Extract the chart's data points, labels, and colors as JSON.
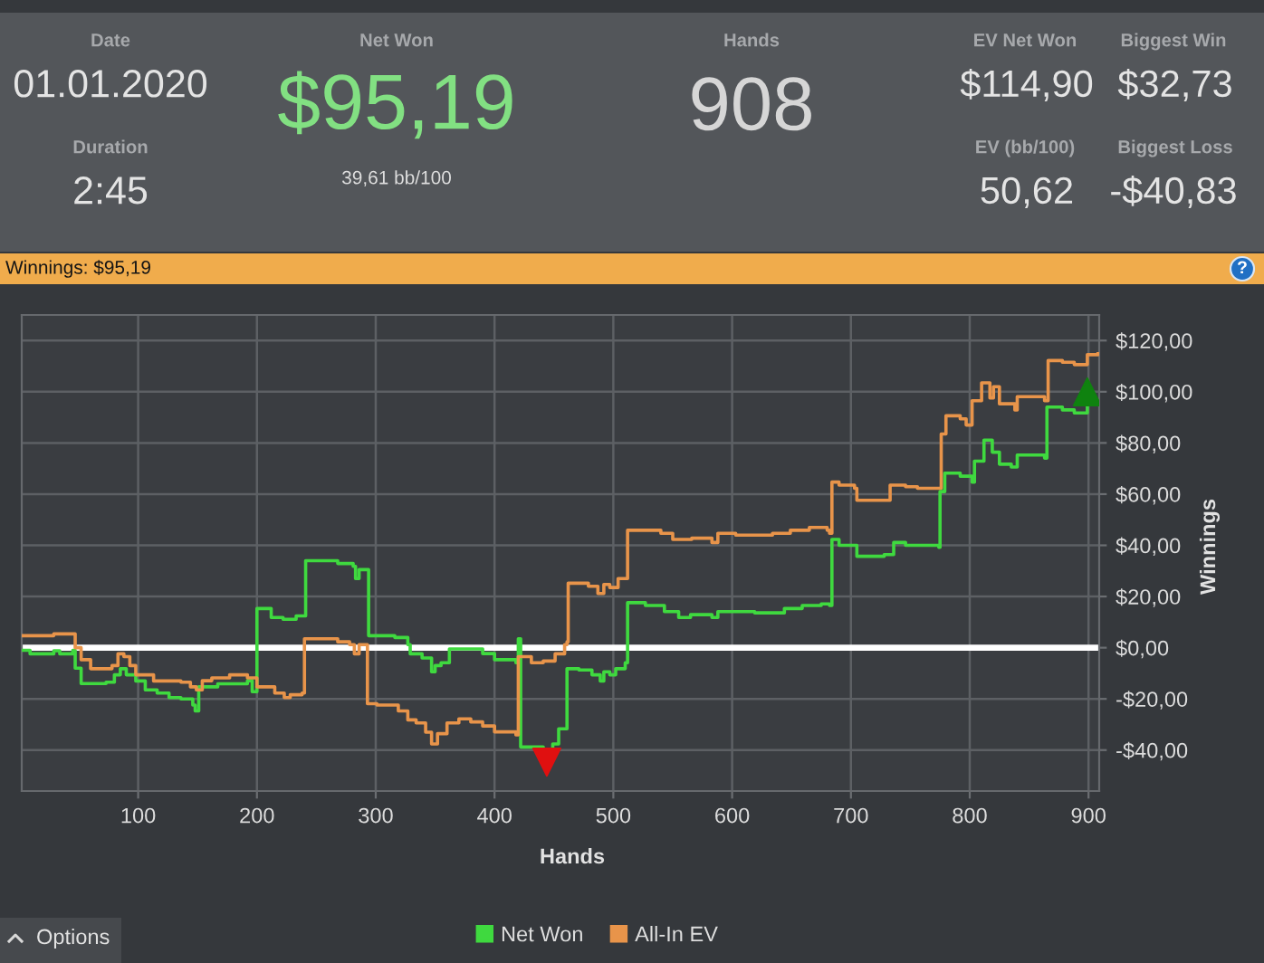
{
  "chart_data": [
    {
      "type": "other",
      "annotations": [
        "Date",
        "01.01.2020",
        "Duration",
        "2:45",
        "Net Won",
        "$95,19",
        "39,61 bb/100",
        "Hands",
        "908",
        "EV Net Won",
        "$114,90",
        "EV (bb/100)",
        "50,62",
        "Biggest Win",
        "$32,73",
        "Biggest Loss",
        "-$40,83"
      ]
    },
    {
      "type": "step",
      "title": "Winnings: $95,19",
      "xlabel": "Hands",
      "ylabel": "Winnings",
      "xlim": [
        2,
        909
      ],
      "ylim": [
        -56,
        130
      ],
      "xticks": [
        100,
        200,
        300,
        400,
        500,
        600,
        700,
        800,
        900
      ],
      "yticks": [
        {
          "value": -40,
          "label": "-$40,00"
        },
        {
          "value": -20,
          "label": "-$20,00"
        },
        {
          "value": 0,
          "label": "$0,00"
        },
        {
          "value": 20,
          "label": "$20,00"
        },
        {
          "value": 40,
          "label": "$40,00"
        },
        {
          "value": 60,
          "label": "$60,00"
        },
        {
          "value": 80,
          "label": "$80,00"
        },
        {
          "value": 100,
          "label": "$100,00"
        },
        {
          "value": 120,
          "label": "$120,00"
        }
      ],
      "grid": true,
      "legend": "bottom",
      "annotations": [
        "?",
        "Options"
      ],
      "ref_lines": [
        {
          "axis": "y",
          "value": 0,
          "color": "#ffffff"
        }
      ],
      "series": [
        {
          "name": "Net Won",
          "color": "#3fd93f",
          "x": [
            2,
            9,
            29,
            34,
            45,
            47,
            52,
            60,
            73,
            80,
            85,
            90,
            98,
            106,
            116,
            126,
            136,
            146,
            148,
            151,
            167,
            192,
            196,
            200,
            212,
            222,
            233,
            241,
            268,
            281,
            283,
            286,
            294,
            316,
            327,
            329,
            339,
            347,
            350,
            355,
            362,
            390,
            400,
            418,
            420,
            422,
            441,
            449,
            454,
            461,
            471,
            482,
            489,
            492,
            497,
            502,
            510,
            512,
            527,
            543,
            555,
            565,
            583,
            588,
            619,
            644,
            659,
            675,
            682,
            684,
            690,
            705,
            728,
            736,
            746,
            774,
            775,
            779,
            792,
            802,
            804,
            812,
            819,
            825,
            835,
            840,
            863,
            865,
            878,
            888,
            899,
            908
          ],
          "values": [
            -1,
            -2.4,
            -1.2,
            -2.4,
            -1,
            -8,
            -14,
            -14,
            -13.5,
            -10.6,
            -8.2,
            -10.6,
            -13,
            -16.5,
            -17.7,
            -19.5,
            -20,
            -22.4,
            -24.7,
            -15.3,
            -14.1,
            -12.9,
            -17.2,
            15.3,
            11.8,
            11.1,
            12.4,
            34,
            32.9,
            31.8,
            27,
            30.5,
            4.7,
            4,
            1.2,
            -2.4,
            -4,
            -9.4,
            -7,
            -5.9,
            -0.5,
            -2.3,
            -4.7,
            -5.9,
            3.5,
            -38.8,
            -40,
            -37.6,
            -31.7,
            -8.2,
            -8.7,
            -10.6,
            -13,
            -9.4,
            -10.6,
            -8.2,
            -5.9,
            17.6,
            16.5,
            14.1,
            11.8,
            12.9,
            11.8,
            14.1,
            13.6,
            15.3,
            16.5,
            17.1,
            16.5,
            42.3,
            40,
            35.7,
            36.4,
            41.1,
            40,
            39.2,
            61,
            68.2,
            67,
            64.7,
            72.9,
            81.1,
            76.4,
            71.7,
            70.6,
            75.3,
            74.1,
            94,
            92.9,
            91.7,
            95.2,
            95.2
          ]
        },
        {
          "name": "All-In EV",
          "color": "#e8944a",
          "x": [
            2,
            29,
            47,
            52,
            60,
            78,
            83,
            88,
            93,
            98,
            113,
            136,
            144,
            149,
            154,
            162,
            177,
            192,
            200,
            215,
            223,
            228,
            238,
            240,
            268,
            278,
            282,
            286,
            293,
            301,
            319,
            327,
            334,
            342,
            347,
            352,
            360,
            370,
            380,
            390,
            400,
            418,
            420,
            431,
            441,
            451,
            459,
            461,
            462,
            479,
            487,
            492,
            497,
            504,
            512,
            540,
            550,
            566,
            583,
            588,
            603,
            634,
            649,
            665,
            680,
            682,
            684,
            690,
            703,
            705,
            723,
            733,
            746,
            756,
            776,
            780,
            792,
            797,
            802,
            810,
            817,
            820,
            825,
            838,
            840,
            863,
            866,
            878,
            888,
            899,
            908
          ],
          "values": [
            4.7,
            5.4,
            0,
            -4.7,
            -8.2,
            -7,
            -2.4,
            -3.5,
            -7,
            -10.6,
            -13,
            -13.5,
            -15.3,
            -16.5,
            -12.9,
            -11.8,
            -10.6,
            -11.8,
            -15.3,
            -17.7,
            -19.5,
            -18.4,
            -17.7,
            3.5,
            2.3,
            1.2,
            -2.4,
            1.2,
            -21.9,
            -22.4,
            -24.7,
            -28.2,
            -29.4,
            -33,
            -37.6,
            -33.6,
            -29.4,
            -27.8,
            -29,
            -30.6,
            -32.9,
            -34.1,
            -3.5,
            -5.9,
            -5.2,
            -2.4,
            1.2,
            2.3,
            25.2,
            24,
            21.2,
            24.7,
            23.5,
            27,
            45.9,
            44.7,
            42.3,
            42.8,
            41.1,
            44.7,
            44,
            44.7,
            45.9,
            47,
            45.9,
            44.7,
            64.7,
            63.5,
            62.3,
            57.6,
            57.6,
            63.5,
            62.9,
            62.3,
            83.5,
            90.6,
            89.4,
            87,
            96.5,
            103.5,
            97.6,
            102,
            95.3,
            92.9,
            98.1,
            96.5,
            112.2,
            111.5,
            110.6,
            114.5,
            114.9
          ]
        },
        {
          "type": "scatter",
          "marker": "triangle_down",
          "color": "#e01010",
          "x": [
            444
          ],
          "values": [
            -44.7
          ]
        },
        {
          "type": "scatter",
          "marker": "triangle",
          "color": "#0f820f",
          "x": [
            899
          ],
          "values": [
            100
          ]
        }
      ]
    }
  ]
}
